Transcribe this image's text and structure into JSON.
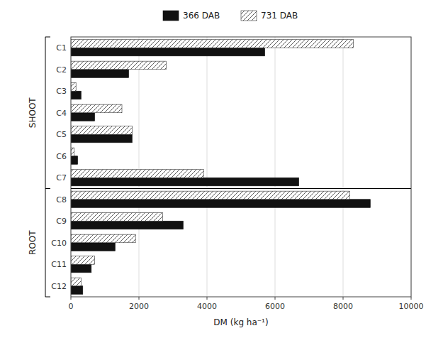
{
  "chart_data": {
    "type": "bar",
    "orientation": "horizontal",
    "categories": [
      "C1",
      "C2",
      "C3",
      "C4",
      "C5",
      "C6",
      "C7",
      "C8",
      "C9",
      "C10",
      "C11",
      "C12"
    ],
    "series": [
      {
        "name": "366 DAB",
        "color": "#111111",
        "values": [
          5700,
          1700,
          300,
          700,
          1800,
          200,
          6700,
          8800,
          3300,
          1300,
          600,
          350
        ]
      },
      {
        "name": "731 DAB",
        "color": "#ffffff",
        "values": [
          8300,
          2800,
          150,
          1500,
          1800,
          100,
          3900,
          8200,
          2700,
          1900,
          700,
          300
        ]
      }
    ],
    "xlabel": "DM (kg ha⁻¹)",
    "xlim": [
      0,
      10000
    ],
    "xticks": [
      0,
      2000,
      4000,
      6000,
      8000,
      10000
    ],
    "grid": true,
    "legend": "top",
    "annotations": [
      {
        "text": "SHOOT",
        "from": "C1",
        "to": "C7"
      },
      {
        "text": "ROOT",
        "from": "C8",
        "to": "C12"
      }
    ]
  }
}
